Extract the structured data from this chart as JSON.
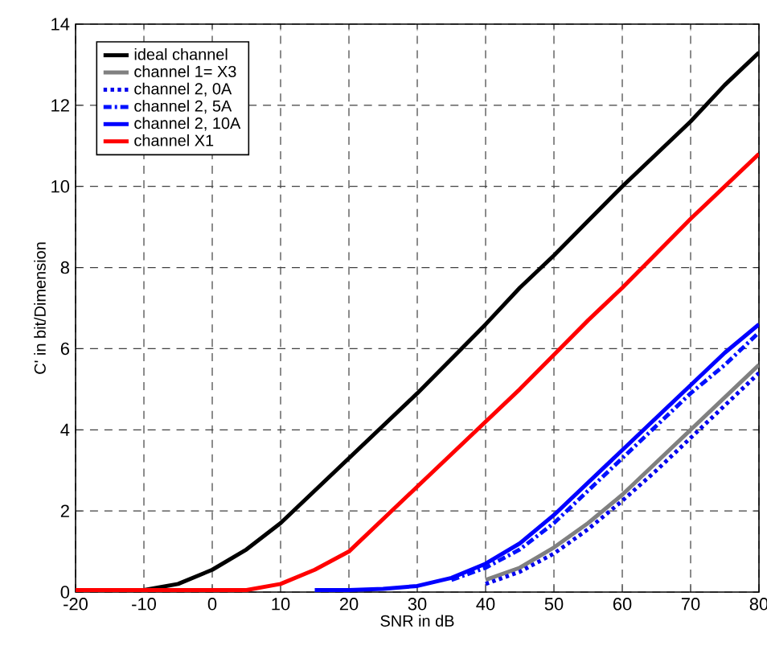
{
  "chart_data": {
    "type": "line",
    "xlabel": "SNR in dB",
    "ylabel": "C' in bit/Dimension",
    "x": [
      -20,
      -15,
      -10,
      -5,
      0,
      5,
      10,
      15,
      20,
      25,
      30,
      35,
      40,
      45,
      50,
      55,
      60,
      65,
      70,
      75,
      80
    ],
    "xlim": [
      -20,
      80
    ],
    "xticks": [
      -20,
      -10,
      0,
      10,
      20,
      30,
      40,
      50,
      60,
      70,
      80
    ],
    "ylim": [
      0,
      14
    ],
    "yticks": [
      0,
      2,
      4,
      6,
      8,
      10,
      12,
      14
    ],
    "grid": true,
    "legend": "top left",
    "marker": "none",
    "series": [
      {
        "name": "ideal channel",
        "color": "#000000",
        "line_style": "solid",
        "values": [
          0.05,
          0.05,
          0.05,
          0.2,
          0.55,
          1.05,
          1.7,
          2.5,
          3.3,
          4.1,
          4.9,
          5.75,
          6.6,
          7.5,
          8.3,
          9.15,
          10.0,
          10.8,
          11.6,
          12.5,
          13.3
        ]
      },
      {
        "name": "channel  1= X3",
        "color": "#808080",
        "line_style": "solid",
        "values": [
          null,
          null,
          null,
          null,
          null,
          null,
          null,
          null,
          null,
          null,
          null,
          null,
          0.3,
          0.6,
          1.1,
          1.7,
          2.4,
          3.2,
          4.0,
          4.8,
          5.6
        ]
      },
      {
        "name": "channel 2, 0A",
        "color": "#0000ee",
        "line_style": "dotted",
        "values": [
          null,
          null,
          null,
          null,
          null,
          null,
          null,
          null,
          null,
          null,
          null,
          null,
          0.2,
          0.5,
          0.95,
          1.55,
          2.25,
          3.0,
          3.8,
          4.6,
          5.4
        ]
      },
      {
        "name": "channel 2, 5A",
        "color": "#0010ff",
        "line_style": "dashdot",
        "values": [
          null,
          null,
          null,
          null,
          null,
          null,
          null,
          null,
          null,
          null,
          null,
          0.3,
          0.6,
          1.05,
          1.7,
          2.5,
          3.3,
          4.1,
          4.9,
          5.6,
          6.4
        ]
      },
      {
        "name": "channel 2, 10A",
        "color": "#0000ff",
        "line_style": "solid",
        "values": [
          null,
          null,
          null,
          null,
          null,
          null,
          null,
          0.05,
          0.05,
          0.08,
          0.15,
          0.35,
          0.7,
          1.2,
          1.9,
          2.7,
          3.5,
          4.3,
          5.1,
          5.9,
          6.6
        ]
      },
      {
        "name": "channel X1",
        "color": "#ff0000",
        "line_style": "solid",
        "values": [
          0.05,
          0.05,
          0.05,
          0.05,
          0.05,
          0.05,
          0.2,
          0.55,
          1.0,
          1.8,
          2.6,
          3.4,
          4.2,
          5.0,
          5.85,
          6.7,
          7.5,
          8.35,
          9.2,
          10.0,
          10.8
        ]
      }
    ]
  }
}
